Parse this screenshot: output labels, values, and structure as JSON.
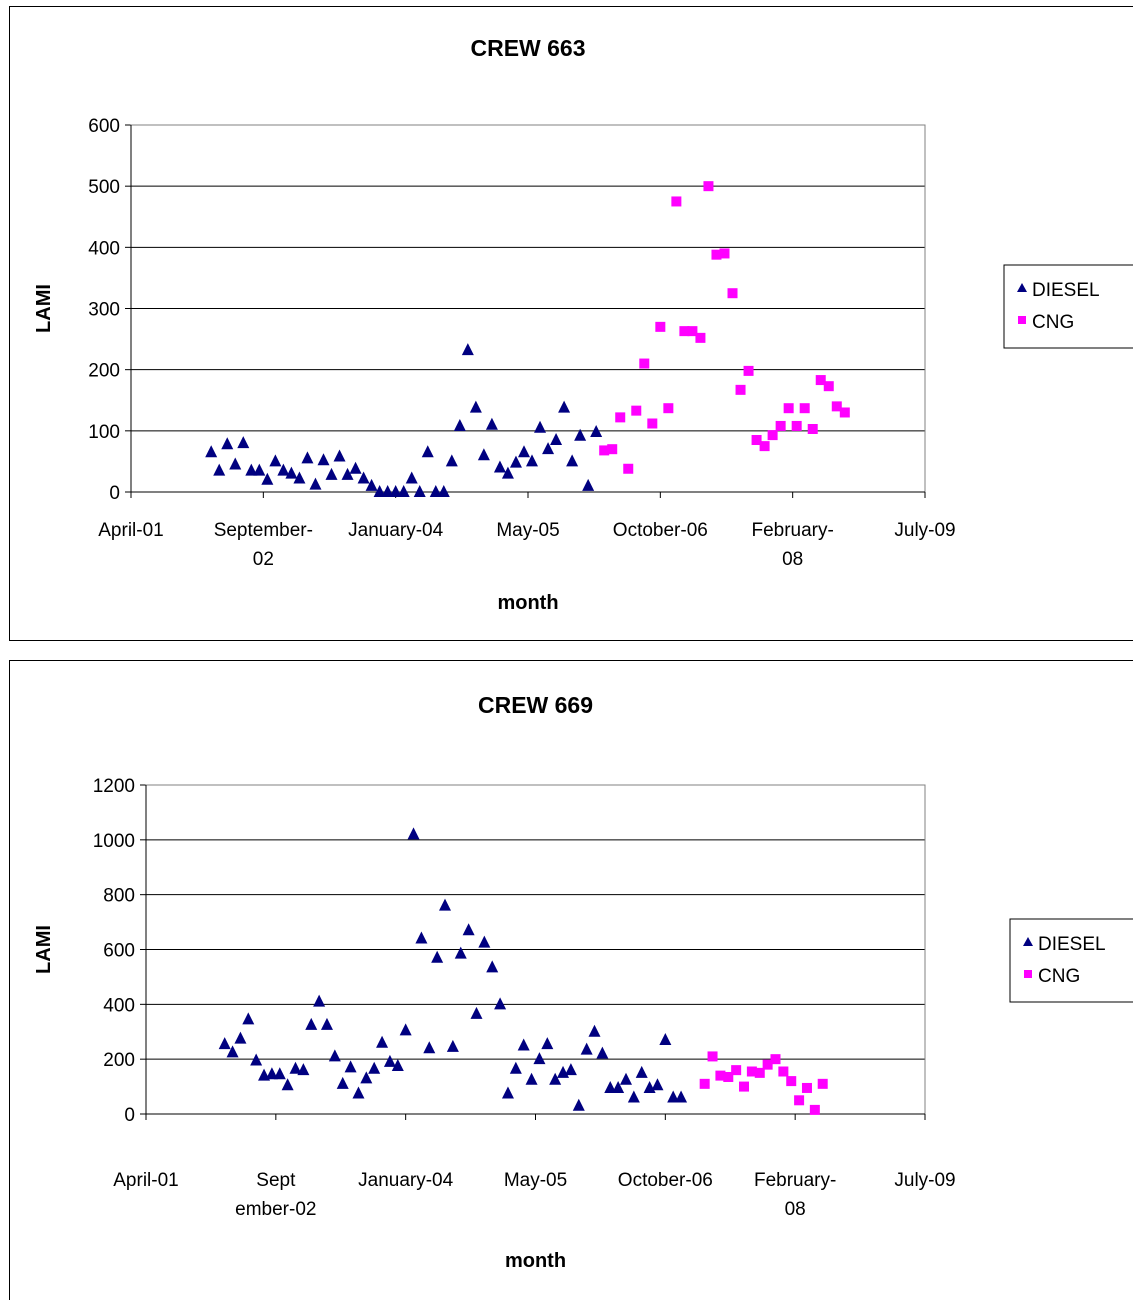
{
  "chart_data": [
    {
      "type": "scatter",
      "title": "CREW 663",
      "xlabel": "month",
      "ylabel": "LAMI",
      "ylim": [
        0,
        600
      ],
      "yticks": [
        "0",
        "100",
        "200",
        "300",
        "400",
        "500",
        "600"
      ],
      "xlim": [
        "2001-04",
        "2009-07"
      ],
      "xticks": [
        "April-01",
        "September-02",
        "January-04",
        "May-05",
        "October-06",
        "February-08",
        "July-09"
      ],
      "grid": "horizontal",
      "legend_position": "right",
      "series": [
        {
          "name": "DIESEL",
          "marker": "triangle",
          "color": "#000080",
          "points": [
            [
              "2002-02",
              65
            ],
            [
              "2002-03",
              35
            ],
            [
              "2002-04",
              78
            ],
            [
              "2002-05",
              45
            ],
            [
              "2002-06",
              80
            ],
            [
              "2002-07",
              35
            ],
            [
              "2002-08",
              35
            ],
            [
              "2002-09",
              20
            ],
            [
              "2002-10",
              50
            ],
            [
              "2002-11",
              35
            ],
            [
              "2002-12",
              30
            ],
            [
              "2003-01",
              22
            ],
            [
              "2003-02",
              55
            ],
            [
              "2003-03",
              12
            ],
            [
              "2003-04",
              52
            ],
            [
              "2003-05",
              28
            ],
            [
              "2003-06",
              58
            ],
            [
              "2003-07",
              28
            ],
            [
              "2003-08",
              38
            ],
            [
              "2003-09",
              22
            ],
            [
              "2003-10",
              10
            ],
            [
              "2003-11",
              0
            ],
            [
              "2003-12",
              0
            ],
            [
              "2004-01",
              0
            ],
            [
              "2004-02",
              0
            ],
            [
              "2004-03",
              22
            ],
            [
              "2004-04",
              0
            ],
            [
              "2004-05",
              65
            ],
            [
              "2004-06",
              0
            ],
            [
              "2004-07",
              0
            ],
            [
              "2004-08",
              50
            ],
            [
              "2004-09",
              108
            ],
            [
              "2004-10",
              232
            ],
            [
              "2004-11",
              138
            ],
            [
              "2004-12",
              60
            ],
            [
              "2005-01",
              110
            ],
            [
              "2005-02",
              40
            ],
            [
              "2005-03",
              30
            ],
            [
              "2005-04",
              48
            ],
            [
              "2005-05",
              65
            ],
            [
              "2005-06",
              50
            ],
            [
              "2005-07",
              105
            ],
            [
              "2005-08",
              70
            ],
            [
              "2005-09",
              85
            ],
            [
              "2005-10",
              138
            ],
            [
              "2005-11",
              50
            ],
            [
              "2005-12",
              92
            ],
            [
              "2006-01",
              10
            ],
            [
              "2006-02",
              98
            ]
          ]
        },
        {
          "name": "CNG",
          "marker": "square",
          "color": "#ff00ff",
          "points": [
            [
              "2006-03",
              68
            ],
            [
              "2006-04",
              70
            ],
            [
              "2006-05",
              122
            ],
            [
              "2006-06",
              38
            ],
            [
              "2006-07",
              133
            ],
            [
              "2006-08",
              210
            ],
            [
              "2006-09",
              112
            ],
            [
              "2006-10",
              270
            ],
            [
              "2006-11",
              137
            ],
            [
              "2006-12",
              475
            ],
            [
              "2007-01",
              263
            ],
            [
              "2007-02",
              263
            ],
            [
              "2007-03",
              252
            ],
            [
              "2007-04",
              500
            ],
            [
              "2007-05",
              388
            ],
            [
              "2007-06",
              390
            ],
            [
              "2007-07",
              325
            ],
            [
              "2007-08",
              167
            ],
            [
              "2007-09",
              198
            ],
            [
              "2007-10",
              85
            ],
            [
              "2007-11",
              75
            ],
            [
              "2007-12",
              93
            ],
            [
              "2008-01",
              108
            ],
            [
              "2008-02",
              137
            ],
            [
              "2008-03",
              108
            ],
            [
              "2008-04",
              137
            ],
            [
              "2008-05",
              103
            ],
            [
              "2008-06",
              183
            ],
            [
              "2008-07",
              173
            ],
            [
              "2008-08",
              140
            ],
            [
              "2008-09",
              130
            ]
          ]
        }
      ]
    },
    {
      "type": "scatter",
      "title": "CREW 669",
      "xlabel": "month",
      "ylabel": "LAMI",
      "ylim": [
        0,
        1200
      ],
      "yticks": [
        "0",
        "200",
        "400",
        "600",
        "800",
        "1000",
        "1200"
      ],
      "xlim": [
        "2001-04",
        "2009-07"
      ],
      "xticks": [
        "April-01",
        "Sept ember-02",
        "January-04",
        "May-05",
        "October-06",
        "February-08",
        "July-09"
      ],
      "grid": "horizontal",
      "legend_position": "right",
      "series": [
        {
          "name": "DIESEL",
          "marker": "triangle",
          "color": "#000080",
          "points": [
            [
              "2002-02",
              255
            ],
            [
              "2002-03",
              225
            ],
            [
              "2002-04",
              275
            ],
            [
              "2002-05",
              345
            ],
            [
              "2002-06",
              195
            ],
            [
              "2002-07",
              140
            ],
            [
              "2002-08",
              145
            ],
            [
              "2002-09",
              145
            ],
            [
              "2002-10",
              105
            ],
            [
              "2002-11",
              165
            ],
            [
              "2002-12",
              160
            ],
            [
              "2003-01",
              325
            ],
            [
              "2003-02",
              410
            ],
            [
              "2003-03",
              325
            ],
            [
              "2003-04",
              210
            ],
            [
              "2003-05",
              110
            ],
            [
              "2003-06",
              170
            ],
            [
              "2003-07",
              75
            ],
            [
              "2003-08",
              130
            ],
            [
              "2003-09",
              165
            ],
            [
              "2003-10",
              260
            ],
            [
              "2003-11",
              190
            ],
            [
              "2003-12",
              175
            ],
            [
              "2004-01",
              305
            ],
            [
              "2004-02",
              1020
            ],
            [
              "2004-03",
              640
            ],
            [
              "2004-04",
              240
            ],
            [
              "2004-05",
              570
            ],
            [
              "2004-06",
              760
            ],
            [
              "2004-07",
              245
            ],
            [
              "2004-08",
              585
            ],
            [
              "2004-09",
              670
            ],
            [
              "2004-10",
              365
            ],
            [
              "2004-11",
              625
            ],
            [
              "2004-12",
              535
            ],
            [
              "2005-01",
              400
            ],
            [
              "2005-02",
              75
            ],
            [
              "2005-03",
              165
            ],
            [
              "2005-04",
              250
            ],
            [
              "2005-05",
              125
            ],
            [
              "2005-06",
              200
            ],
            [
              "2005-07",
              255
            ],
            [
              "2005-08",
              125
            ],
            [
              "2005-09",
              150
            ],
            [
              "2005-10",
              160
            ],
            [
              "2005-11",
              30
            ],
            [
              "2005-12",
              235
            ],
            [
              "2006-01",
              300
            ],
            [
              "2006-02",
              220
            ],
            [
              "2006-03",
              95
            ],
            [
              "2006-04",
              95
            ],
            [
              "2006-05",
              125
            ],
            [
              "2006-06",
              60
            ],
            [
              "2006-07",
              150
            ],
            [
              "2006-08",
              95
            ],
            [
              "2006-09",
              105
            ],
            [
              "2006-10",
              270
            ],
            [
              "2006-11",
              60
            ],
            [
              "2006-12",
              60
            ]
          ]
        },
        {
          "name": "CNG",
          "marker": "square",
          "color": "#ff00ff",
          "points": [
            [
              "2007-03",
              110
            ],
            [
              "2007-04",
              210
            ],
            [
              "2007-05",
              140
            ],
            [
              "2007-06",
              135
            ],
            [
              "2007-07",
              160
            ],
            [
              "2007-08",
              100
            ],
            [
              "2007-09",
              155
            ],
            [
              "2007-10",
              150
            ],
            [
              "2007-11",
              180
            ],
            [
              "2007-12",
              200
            ],
            [
              "2008-01",
              155
            ],
            [
              "2008-02",
              120
            ],
            [
              "2008-03",
              50
            ],
            [
              "2008-04",
              95
            ],
            [
              "2008-05",
              15
            ],
            [
              "2008-06",
              110
            ]
          ]
        }
      ]
    }
  ]
}
